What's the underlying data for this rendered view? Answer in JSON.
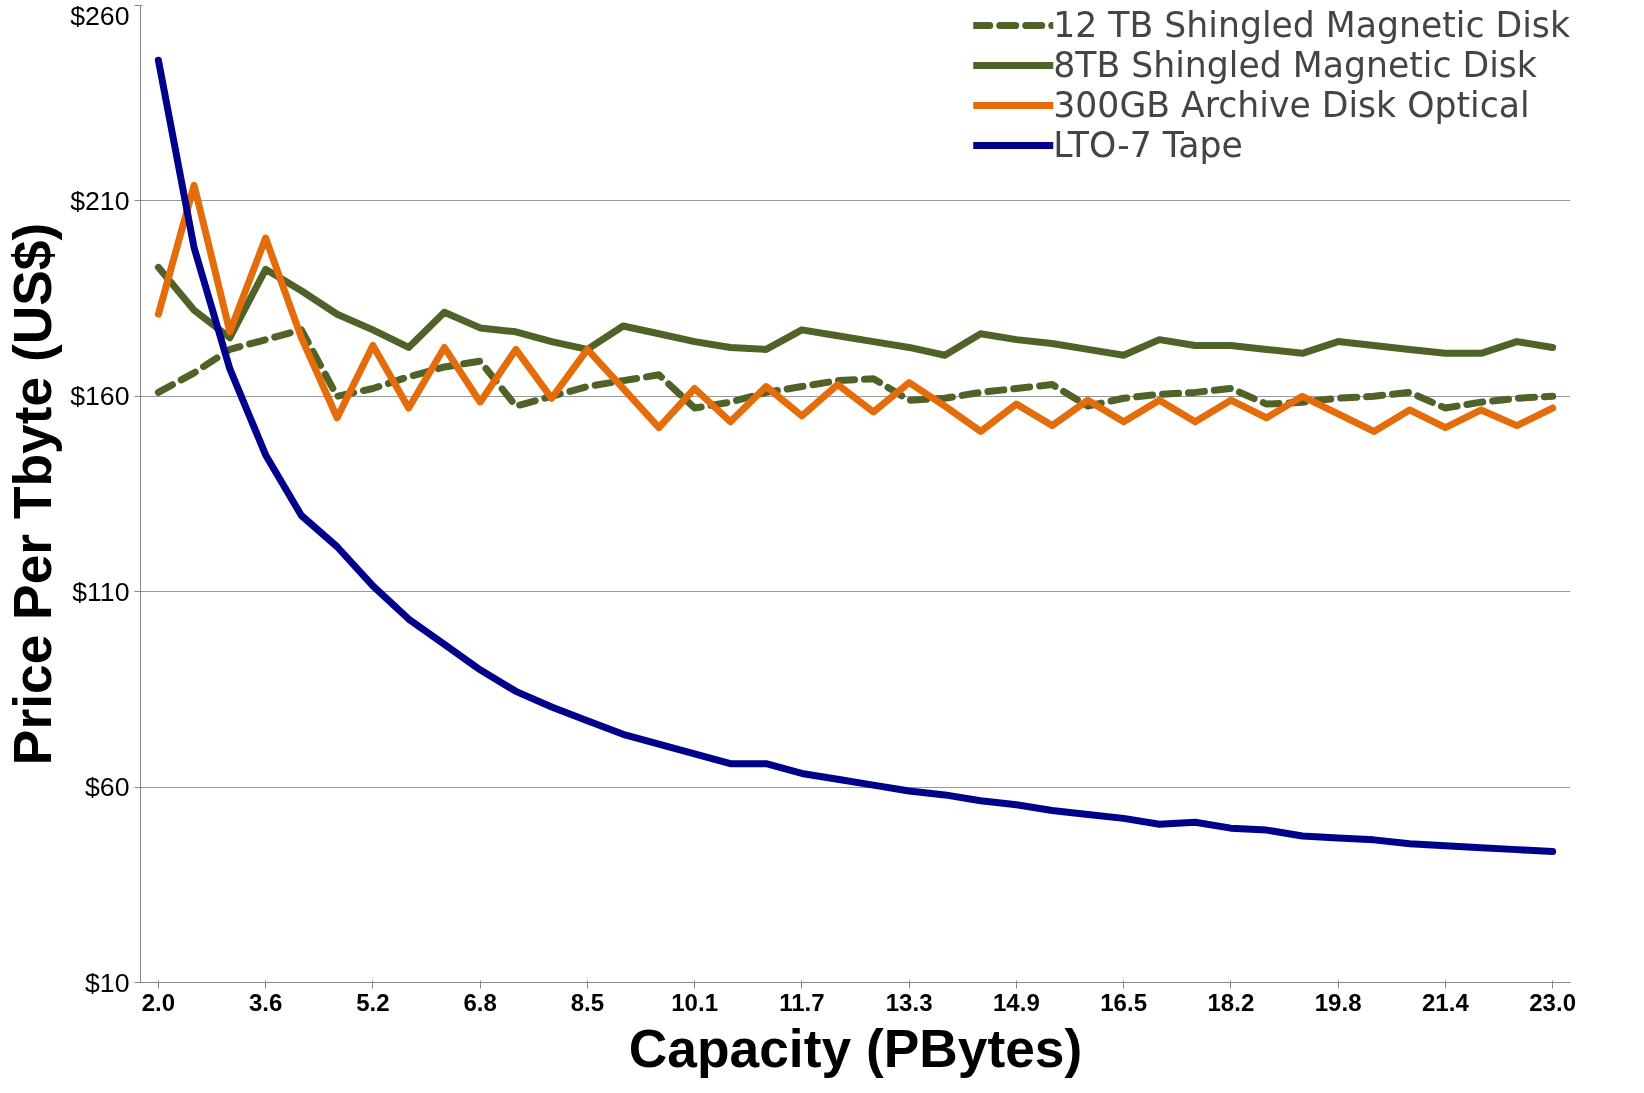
{
  "chart_data": {
    "type": "line",
    "xlabel": "Capacity (PBytes)",
    "ylabel": "Price Per Tbyte (US$)",
    "categories": [
      "2.0",
      null,
      null,
      "3.6",
      null,
      null,
      "5.2",
      null,
      null,
      "6.8",
      null,
      null,
      "8.5",
      null,
      null,
      "10.1",
      null,
      null,
      "11.7",
      null,
      null,
      "13.3",
      null,
      null,
      "14.9",
      null,
      null,
      "16.5",
      null,
      null,
      "18.2",
      null,
      null,
      "19.8",
      null,
      null,
      "21.4",
      null,
      null,
      "23.0"
    ],
    "series": [
      {
        "name": "12 TB Shingled Magnetic Disk",
        "color": "#4f6228",
        "line_style": "dashed",
        "values": [
          161,
          166,
          172,
          174.5,
          177,
          160,
          162,
          165,
          167.5,
          169,
          157.5,
          160,
          162.5,
          164,
          165.5,
          157,
          158.5,
          161,
          162.5,
          164,
          164.5,
          159,
          159.5,
          161,
          162,
          163,
          157.5,
          159.5,
          160.5,
          161,
          162,
          158,
          158.5,
          159.5,
          160,
          161,
          157,
          158.5,
          159.5,
          160
        ]
      },
      {
        "name": "8TB Shingled Magnetic Disk",
        "color": "#4f6228",
        "line_style": "solid",
        "values": [
          193,
          182,
          175,
          192.5,
          187,
          181,
          177,
          172.5,
          181.5,
          177.5,
          176.5,
          174,
          172,
          178,
          176,
          174,
          172.5,
          172,
          177,
          175.5,
          174,
          172.5,
          170.5,
          176,
          174.5,
          173.5,
          172,
          170.5,
          174.5,
          173,
          173,
          172,
          171,
          174,
          173,
          172,
          171,
          171,
          174,
          172.5
        ]
      },
      {
        "name": "300GB Archive Disk Optical",
        "color": "#e46c0a",
        "line_style": "solid",
        "values": [
          181,
          214,
          176.5,
          200.5,
          175,
          154.5,
          173,
          157,
          172.5,
          158.5,
          172,
          159.5,
          172,
          162,
          152,
          162,
          153.5,
          162.5,
          155,
          163,
          156,
          163.5,
          157.5,
          151,
          158,
          152.5,
          159,
          153.5,
          159,
          153.5,
          159,
          154.5,
          160,
          155.5,
          151,
          156.5,
          152,
          156.5,
          152.5,
          157
        ]
      },
      {
        "name": "LTO-7 Tape",
        "color": "#00008b",
        "line_style": "solid",
        "values": [
          246,
          198,
          167,
          145,
          129.5,
          121.5,
          111.5,
          103,
          96.5,
          90,
          84.5,
          80.5,
          77,
          73.5,
          71,
          68.5,
          66,
          66,
          63.5,
          62,
          60.5,
          59,
          58,
          56.5,
          55.5,
          54,
          53,
          52,
          50.5,
          51,
          49.5,
          49,
          47.5,
          47,
          46.5,
          45.5,
          45,
          44.5,
          44,
          43.5
        ]
      }
    ],
    "ylim": [
      10,
      260
    ],
    "yticks": [
      {
        "value": 10,
        "label": "$10"
      },
      {
        "value": 60,
        "label": "$60"
      },
      {
        "value": 110,
        "label": "$110"
      },
      {
        "value": 160,
        "label": "$160"
      },
      {
        "value": 210,
        "label": "$210"
      },
      {
        "value": 260,
        "label": "$260"
      }
    ],
    "grid": "y",
    "legend": "top right",
    "marker": "none"
  }
}
